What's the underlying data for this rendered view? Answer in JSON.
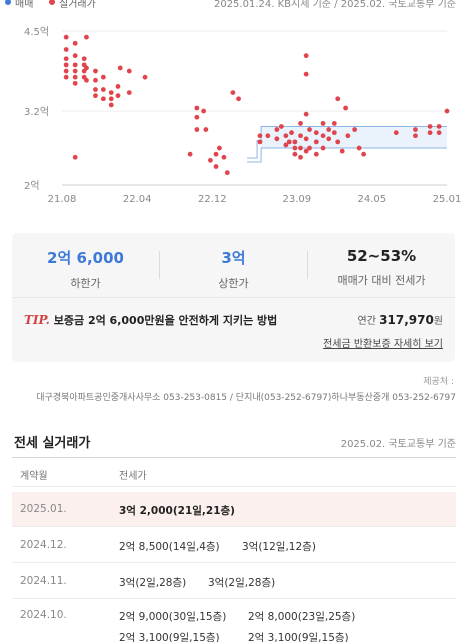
{
  "legend": {
    "item1": "매매",
    "item2": "실거래가",
    "meta": "2025.01.24. KB시세 기준 / 2025.02. 국토교통부 기준"
  },
  "chart_data": {
    "type": "scatter",
    "yticks": [
      "4.5억",
      "3.2억",
      "2억"
    ],
    "xticks": [
      "21.08",
      "22.04",
      "22.12",
      "23.09",
      "24.05",
      "25.01"
    ],
    "ylim": [
      2,
      4.5
    ],
    "xlim": [
      2021.583,
      2025.0
    ],
    "points": [
      [
        2021.62,
        4.4
      ],
      [
        2021.62,
        4.2
      ],
      [
        2021.62,
        4.05
      ],
      [
        2021.62,
        3.95
      ],
      [
        2021.62,
        3.85
      ],
      [
        2021.62,
        3.75
      ],
      [
        2021.7,
        4.3
      ],
      [
        2021.7,
        4.1
      ],
      [
        2021.7,
        3.95
      ],
      [
        2021.7,
        3.85
      ],
      [
        2021.7,
        3.75
      ],
      [
        2021.7,
        3.65
      ],
      [
        2021.7,
        2.45
      ],
      [
        2021.78,
        4.05
      ],
      [
        2021.78,
        3.95
      ],
      [
        2021.78,
        3.85
      ],
      [
        2021.78,
        3.75
      ],
      [
        2021.8,
        4.4
      ],
      [
        2021.8,
        3.9
      ],
      [
        2021.8,
        3.7
      ],
      [
        2021.88,
        3.85
      ],
      [
        2021.88,
        3.7
      ],
      [
        2021.88,
        3.55
      ],
      [
        2021.88,
        3.45
      ],
      [
        2021.95,
        3.75
      ],
      [
        2021.95,
        3.55
      ],
      [
        2021.95,
        3.4
      ],
      [
        2022.02,
        3.5
      ],
      [
        2022.02,
        3.4
      ],
      [
        2022.02,
        3.3
      ],
      [
        2022.08,
        3.6
      ],
      [
        2022.08,
        3.45
      ],
      [
        2022.1,
        3.9
      ],
      [
        2022.18,
        3.85
      ],
      [
        2022.18,
        3.5
      ],
      [
        2022.32,
        3.75
      ],
      [
        2022.72,
        2.5
      ],
      [
        2022.78,
        3.25
      ],
      [
        2022.78,
        3.1
      ],
      [
        2022.78,
        2.9
      ],
      [
        2022.84,
        3.2
      ],
      [
        2022.86,
        2.9
      ],
      [
        2022.9,
        2.4
      ],
      [
        2022.95,
        2.5
      ],
      [
        2022.95,
        2.3
      ],
      [
        2022.98,
        2.6
      ],
      [
        2023.02,
        2.45
      ],
      [
        2023.05,
        2.2
      ],
      [
        2023.1,
        3.5
      ],
      [
        2023.15,
        3.4
      ],
      [
        2023.34,
        2.8
      ],
      [
        2023.34,
        2.7
      ],
      [
        2023.41,
        2.8
      ],
      [
        2023.49,
        2.9
      ],
      [
        2023.49,
        2.75
      ],
      [
        2023.53,
        2.95
      ],
      [
        2023.57,
        2.8
      ],
      [
        2023.57,
        2.65
      ],
      [
        2023.6,
        2.7
      ],
      [
        2023.62,
        2.85
      ],
      [
        2023.65,
        2.7
      ],
      [
        2023.65,
        2.6
      ],
      [
        2023.65,
        2.5
      ],
      [
        2023.7,
        3.0
      ],
      [
        2023.7,
        2.8
      ],
      [
        2023.7,
        2.6
      ],
      [
        2023.7,
        2.45
      ],
      [
        2023.75,
        4.1
      ],
      [
        2023.75,
        3.8
      ],
      [
        2023.75,
        3.15
      ],
      [
        2023.75,
        2.75
      ],
      [
        2023.75,
        2.55
      ],
      [
        2023.78,
        2.9
      ],
      [
        2023.78,
        2.6
      ],
      [
        2023.84,
        2.85
      ],
      [
        2023.84,
        2.7
      ],
      [
        2023.84,
        2.5
      ],
      [
        2023.9,
        3.0
      ],
      [
        2023.9,
        2.8
      ],
      [
        2023.9,
        2.6
      ],
      [
        2023.95,
        2.9
      ],
      [
        2023.95,
        2.75
      ],
      [
        2024.0,
        3.0
      ],
      [
        2024.0,
        2.85
      ],
      [
        2024.03,
        3.4
      ],
      [
        2024.03,
        2.7
      ],
      [
        2024.07,
        2.55
      ],
      [
        2024.1,
        3.25
      ],
      [
        2024.12,
        2.8
      ],
      [
        2024.18,
        2.9
      ],
      [
        2024.22,
        2.6
      ],
      [
        2024.26,
        2.5
      ],
      [
        2024.55,
        2.85
      ],
      [
        2024.72,
        2.9
      ],
      [
        2024.72,
        2.8
      ],
      [
        2024.85,
        2.95
      ],
      [
        2024.85,
        2.85
      ],
      [
        2024.93,
        2.95
      ],
      [
        2024.93,
        2.85
      ],
      [
        2025.0,
        3.2
      ]
    ],
    "band": {
      "from": 2023.35,
      "to": 2025.0,
      "upper": 2.95,
      "lower": 2.6
    }
  },
  "summary": {
    "low_value": "2억 6,000",
    "low_label": "하한가",
    "high_value": "3억",
    "high_label": "상한가",
    "ratio_value": "52~53%",
    "ratio_label": "매매가 대비 전세가",
    "tip_logo": "TIP.",
    "tip_text": "보증금 2억 6,000만원을 안전하게 지키는 방법",
    "annual_label": "연간",
    "annual_value": "317,970",
    "annual_unit": "원",
    "detail_link": "전세금 반환보증 자세히 보기"
  },
  "source": {
    "label": "제공처 :",
    "text": "대구경북아파트공인중개사사무소 053-253-0815 / 단지내(053-252-6797)하나부동산중개 053-252-6797"
  },
  "section": {
    "title": "전세 실거래가",
    "date": "2025.02. 국토교통부 기준"
  },
  "table": {
    "col1": "계약월",
    "col2": "전세가",
    "rows": [
      {
        "month": "2025.01.",
        "deals": [
          "3억 2,000(21일,21층)"
        ]
      },
      {
        "month": "2024.12.",
        "deals": [
          "2억 8,500(14일,4층)",
          "3억(12일,12층)"
        ]
      },
      {
        "month": "2024.11.",
        "deals": [
          "3억(2일,28층)",
          "3억(2일,28층)"
        ]
      },
      {
        "month": "2024.10.",
        "deals": [
          "2억 9,000(30일,15층)",
          "2억 8,000(23일,25층)",
          "2억 3,100(9일,15층)",
          "2억 3,100(9일,15층)"
        ]
      }
    ]
  }
}
